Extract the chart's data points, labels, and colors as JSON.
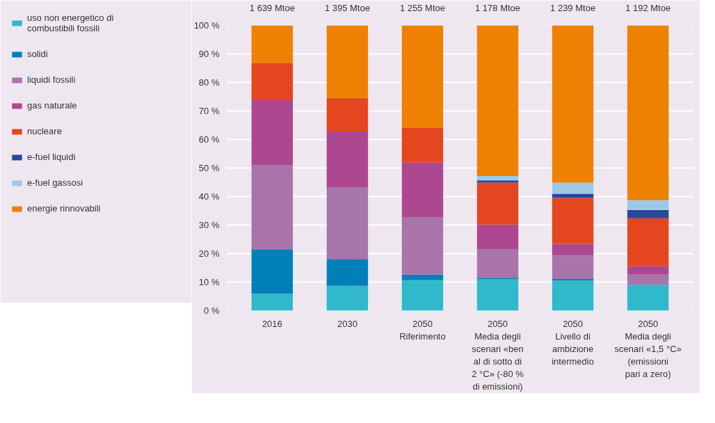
{
  "chart_data": {
    "type": "bar",
    "stacked": true,
    "categories": [
      "2016",
      "2030",
      "2050\nRiferimento",
      "2050\nMedia degli\nscenari «ben\nal di sotto di\n2 °C» (-80 %\ndi emissioni)",
      "2050\nLivello di\nambizione\nintermedio",
      "2050\nMedia degli\nscenari «1,5 °C»\n(emissioni\npari a zero)"
    ],
    "series": [
      {
        "name": "uso non energetico di\ncombustibili fossili",
        "color": "#2fb9cb",
        "values": [
          5.9,
          8.7,
          10.7,
          11.1,
          10.5,
          9.1
        ]
      },
      {
        "name": "solidi",
        "color": "#0080b9",
        "values": [
          15.6,
          9.4,
          1.9,
          0.4,
          0.6,
          0
        ]
      },
      {
        "name": "liquidi fossili",
        "color": "#a974a9",
        "values": [
          29.6,
          25.2,
          20.2,
          10.1,
          8.2,
          3.5
        ]
      },
      {
        "name": "gas naturale",
        "color": "#ad478f",
        "values": [
          22.7,
          19.5,
          19.1,
          8.6,
          4.1,
          3.1
        ]
      },
      {
        "name": "nucleare",
        "color": "#e4471f",
        "values": [
          13.1,
          11.8,
          12.1,
          14.7,
          16.1,
          16.7
        ]
      },
      {
        "name": "e-fuel liquidi",
        "color": "#27479a",
        "values": [
          0,
          0,
          0,
          0.8,
          1.5,
          2.9
        ]
      },
      {
        "name": "e-fuel gassosi",
        "color": "#9dc9e8",
        "values": [
          0,
          0,
          0,
          1.5,
          3.9,
          3.4
        ]
      },
      {
        "name": "energie rinnovabili",
        "color": "#ef8102",
        "values": [
          13.1,
          25.4,
          36.0,
          52.8,
          55.1,
          61.3
        ]
      }
    ],
    "ylim": [
      0,
      100
    ],
    "yticks": [
      {
        "value": 0,
        "label": "0 %"
      },
      {
        "value": 10,
        "label": "10 %"
      },
      {
        "value": 20,
        "label": "20 %"
      },
      {
        "value": 30,
        "label": "30 %"
      },
      {
        "value": 40,
        "label": "40 %"
      },
      {
        "value": 50,
        "label": "50 %"
      },
      {
        "value": 60,
        "label": "60 %"
      },
      {
        "value": 70,
        "label": "70 %"
      },
      {
        "value": 80,
        "label": "80 %"
      },
      {
        "value": 90,
        "label": "90 %"
      },
      {
        "value": 100,
        "label": "100 %"
      }
    ],
    "grid": "y",
    "legend": "left",
    "annotations": [
      "1 639 Mtoe",
      "1 395 Mtoe",
      "1 255 Mtoe",
      "1 178 Mtoe",
      "1 239 Mtoe",
      "1 192 Mtoe"
    ]
  }
}
